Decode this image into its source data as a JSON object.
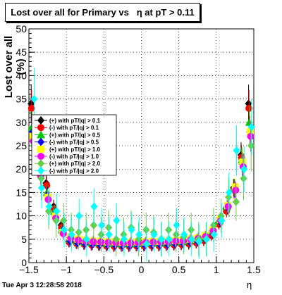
{
  "chart_data": {
    "type": "scatter",
    "title": "Lost over all for Primary vs   η at pT > 0.11",
    "xlabel": "η",
    "ylabel": "Lost over all (%)",
    "xlim": [
      -1.5,
      1.5
    ],
    "ylim": [
      0,
      50
    ],
    "x_ticks": [
      -1.5,
      -1,
      -0.5,
      0,
      0.5,
      1,
      1.5
    ],
    "x_tick_labels": [
      "−1.5",
      "−1",
      "−0.5",
      "0",
      "0.5",
      "1",
      "1.5"
    ],
    "y_ticks": [
      0,
      5,
      10,
      15,
      20,
      25,
      30,
      35,
      40,
      45,
      50
    ],
    "y_tick_labels": [
      "0",
      "5",
      "10",
      "15",
      "20",
      "25",
      "30",
      "35",
      "40",
      "45",
      "50"
    ],
    "grid": true,
    "legend_position": "left, mid-height",
    "x": [
      -1.45,
      -1.35,
      -1.25,
      -1.15,
      -1.05,
      -0.95,
      -0.85,
      -0.75,
      -0.65,
      -0.55,
      -0.45,
      -0.35,
      -0.25,
      -0.15,
      -0.05,
      0.05,
      0.15,
      0.25,
      0.35,
      0.45,
      0.55,
      0.65,
      0.75,
      0.85,
      0.95,
      1.05,
      1.15,
      1.25,
      1.35,
      1.45
    ],
    "series": [
      {
        "name": "(+) with pT/|q| > 0.1",
        "color": "#000000",
        "marker": "diamond",
        "values": [
          34.0,
          23.0,
          17.0,
          12.0,
          8.0,
          4.5,
          4.2,
          4.0,
          3.8,
          3.7,
          3.6,
          3.5,
          3.6,
          3.5,
          3.6,
          3.6,
          3.7,
          3.6,
          3.7,
          3.8,
          3.9,
          4.0,
          4.3,
          4.8,
          6.0,
          8.5,
          11.5,
          16.0,
          23.0,
          34.0
        ]
      },
      {
        "name": "(-) with pT/|q| > 0.1",
        "color": "#ff0000",
        "marker": "circle",
        "values": [
          33.0,
          22.5,
          16.5,
          11.5,
          7.5,
          4.4,
          4.1,
          3.9,
          3.8,
          3.7,
          3.6,
          3.5,
          3.5,
          3.5,
          3.6,
          3.6,
          3.6,
          3.6,
          3.7,
          3.8,
          3.9,
          4.0,
          4.2,
          4.7,
          5.8,
          8.2,
          11.0,
          15.5,
          22.5,
          33.0
        ]
      },
      {
        "name": "(+) with pT/|q| > 0.5",
        "color": "#00cc00",
        "marker": "triangle",
        "values": [
          29.0,
          21.0,
          15.0,
          11.0,
          7.0,
          5.0,
          4.6,
          4.4,
          4.3,
          4.2,
          4.1,
          4.1,
          4.0,
          4.0,
          4.1,
          4.1,
          4.2,
          4.2,
          4.3,
          4.4,
          4.5,
          4.7,
          5.0,
          5.5,
          6.8,
          9.0,
          12.0,
          16.0,
          22.0,
          30.0
        ]
      },
      {
        "name": "(-) with pT/|q| > 0.5",
        "color": "#0000ff",
        "marker": "diamond",
        "values": [
          28.0,
          20.0,
          14.5,
          10.5,
          6.8,
          4.6,
          4.2,
          4.0,
          3.9,
          3.8,
          3.8,
          3.7,
          3.6,
          3.6,
          3.7,
          3.7,
          3.8,
          3.8,
          3.9,
          4.0,
          4.2,
          4.4,
          4.6,
          5.2,
          6.4,
          8.8,
          11.8,
          15.8,
          21.0,
          28.0
        ]
      },
      {
        "name": "(+) with pT/|q| > 1.0",
        "color": "#ffff00",
        "marker": "square",
        "values": [
          27.0,
          19.0,
          14.0,
          10.0,
          6.5,
          5.5,
          5.0,
          4.8,
          4.6,
          4.5,
          4.4,
          4.4,
          4.3,
          4.3,
          4.4,
          4.4,
          4.5,
          4.5,
          4.6,
          4.7,
          4.8,
          5.0,
          5.3,
          5.8,
          7.0,
          9.2,
          12.2,
          16.2,
          21.5,
          28.0
        ]
      },
      {
        "name": "(-) with pT/|q| > 1.0",
        "color": "#ff00ff",
        "marker": "circle",
        "values": [
          26.0,
          18.5,
          13.5,
          9.5,
          6.2,
          5.2,
          4.8,
          4.6,
          4.5,
          4.4,
          4.3,
          4.3,
          4.2,
          4.2,
          4.3,
          4.3,
          4.4,
          4.4,
          4.5,
          4.6,
          4.7,
          4.9,
          5.2,
          5.6,
          6.8,
          9.0,
          12.0,
          15.5,
          20.5,
          27.0
        ]
      },
      {
        "name": "(+) with pT/|q| > 2.0",
        "color": "#66cc44",
        "marker": "diamond",
        "values": [
          25.0,
          18.0,
          11.0,
          9.0,
          9.0,
          7.0,
          6.5,
          7.0,
          8.0,
          6.0,
          7.5,
          5.0,
          6.0,
          7.5,
          5.0,
          7.0,
          6.5,
          5.0,
          7.0,
          6.0,
          5.5,
          7.0,
          5.0,
          5.0,
          8.0,
          10.0,
          14.0,
          13.0,
          18.0,
          25.0
        ]
      },
      {
        "name": "(-) with pT/|q| > 2.0",
        "color": "#00ffff",
        "marker": "diamond",
        "values": [
          35.0,
          16.0,
          12.0,
          11.0,
          7.0,
          6.0,
          10.0,
          5.0,
          12.0,
          8.0,
          6.0,
          9.0,
          5.0,
          7.0,
          6.0,
          4.0,
          6.0,
          5.0,
          5.0,
          8.0,
          6.0,
          5.0,
          4.5,
          5.0,
          6.0,
          9.0,
          15.0,
          24.0,
          20.0,
          29.0
        ]
      }
    ]
  },
  "footer": {
    "timestamp": "Tue Apr  3 12:28:58 2018"
  }
}
